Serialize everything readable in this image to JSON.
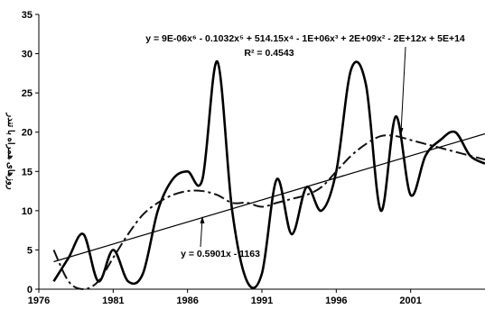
{
  "chart_data": {
    "type": "line",
    "title": "",
    "xlabel": "",
    "ylabel": "روزهای همراه با تندر",
    "xlim": [
      1976,
      2006
    ],
    "ylim": [
      0,
      35
    ],
    "x_ticks": [
      "1976",
      "1981",
      "1986",
      "1991",
      "1996",
      "2001"
    ],
    "y_ticks": [
      "0",
      "5",
      "10",
      "15",
      "20",
      "25",
      "30",
      "35"
    ],
    "grid": false,
    "legend": "none",
    "series": [
      {
        "style": "solid-smooth",
        "x": [
          1977,
          1978,
          1979,
          1980,
          1981,
          1982,
          1983,
          1984,
          1985,
          1986,
          1987,
          1988,
          1989,
          1990,
          1991,
          1992,
          1993,
          1994,
          1995,
          1996,
          1997,
          1998,
          1999,
          2000,
          2001,
          2002,
          2003,
          2004,
          2005,
          2006
        ],
        "values": [
          1,
          4,
          7,
          1,
          5,
          1,
          2,
          10,
          14,
          15,
          14,
          29,
          10,
          1,
          2,
          14,
          7,
          13,
          10,
          15,
          28,
          26,
          10,
          22,
          12,
          17,
          19,
          20,
          17,
          16
        ]
      },
      {
        "style": "linear-trend",
        "x": [
          1977,
          2006
        ],
        "values": [
          3.5,
          19.8
        ]
      },
      {
        "style": "polynomial-trend",
        "x": [
          1977,
          1978,
          1979,
          1980,
          1981,
          1982,
          1983,
          1984,
          1985,
          1986,
          1987,
          1988,
          1989,
          1990,
          1991,
          1992,
          1993,
          1994,
          1995,
          1996,
          1997,
          1998,
          1999,
          2000,
          2001,
          2002,
          2003,
          2004,
          2005,
          2006
        ],
        "values": [
          5,
          1,
          0,
          1,
          4,
          7,
          9.5,
          11,
          12,
          12.5,
          12.5,
          12,
          11,
          11,
          10.5,
          11,
          11.5,
          12,
          13,
          15,
          17,
          18.5,
          19.5,
          19.5,
          19,
          18.5,
          18,
          17.5,
          17,
          16.5
        ]
      }
    ],
    "annotations": [
      {
        "id": "poly",
        "lines": [
          "y = 9E-06x⁶ - 0.1032x⁵ + 514.15x⁴ - 1E+06x³ + 2E+09x² - 2E+12x + 5E+14",
          "R² = 0.4543"
        ]
      },
      {
        "id": "linear",
        "lines": [
          "y = 0.5901x - 1163"
        ]
      }
    ]
  }
}
